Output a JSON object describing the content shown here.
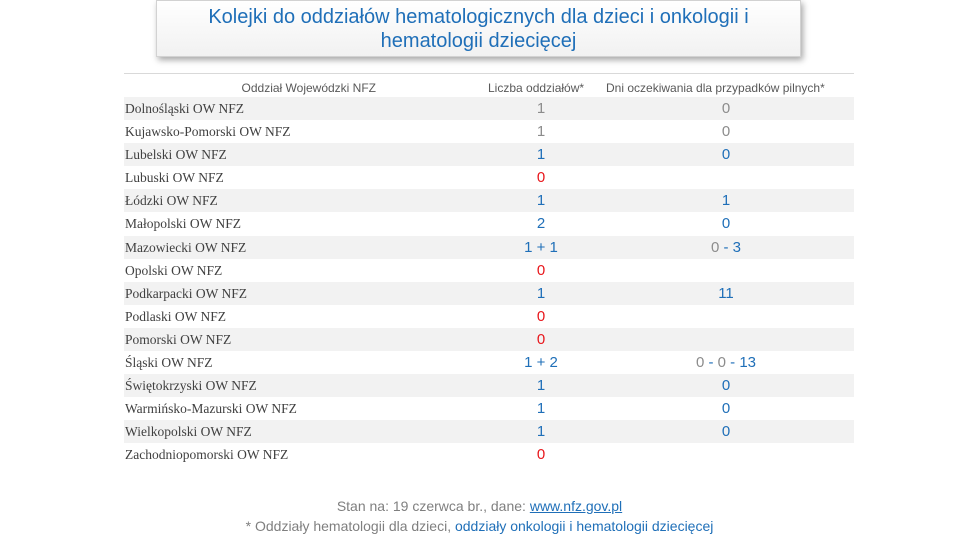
{
  "title": {
    "line1": "Kolejki do oddziałów hematologicznych dla dzieci i onkologii i",
    "line2": "hematologii dziecięcej"
  },
  "table": {
    "headers": {
      "region": "Oddział Wojewódzki NFZ",
      "count": "Liczba oddziałów*",
      "wait": "Dni oczekiwania dla przypadków pilnych*"
    },
    "rows": [
      {
        "name": "Dolnośląski OW NFZ",
        "count": "1",
        "wait": "0"
      },
      {
        "name": "Kujawsko-Pomorski OW NFZ",
        "count": "1",
        "wait": "0"
      },
      {
        "name": "Lubelski OW NFZ",
        "count": "1",
        "wait": "0"
      },
      {
        "name": "Lubuski OW NFZ",
        "count": "0",
        "wait": ""
      },
      {
        "name": "Łódzki OW NFZ",
        "count": "1",
        "wait": "1"
      },
      {
        "name": "Małopolski OW NFZ",
        "count": "2",
        "wait": "0"
      },
      {
        "name": "Mazowiecki OW NFZ",
        "count": "1 + 1",
        "wait": "0 - 3"
      },
      {
        "name": "Opolski OW NFZ",
        "count": "0",
        "wait": ""
      },
      {
        "name": "Podkarpacki OW NFZ",
        "count": "1",
        "wait": "11"
      },
      {
        "name": "Podlaski OW NFZ",
        "count": "0",
        "wait": ""
      },
      {
        "name": "Pomorski OW NFZ",
        "count": "0",
        "wait": ""
      },
      {
        "name": "Śląski OW NFZ",
        "count": "1 + 2",
        "wait": "0 - 0 - 13"
      },
      {
        "name": "Świętokrzyski OW NFZ",
        "count": "1",
        "wait": "0"
      },
      {
        "name": "Warmińsko-Mazurski OW NFZ",
        "count": "1",
        "wait": "0"
      },
      {
        "name": "Wielkopolski OW NFZ",
        "count": "1",
        "wait": "0"
      },
      {
        "name": "Zachodniopomorski OW NFZ",
        "count": "0",
        "wait": ""
      }
    ]
  },
  "colors": {
    "blue": "#1f6fb8",
    "red": "#e8161b",
    "grey": "#8c8c8c"
  },
  "footer": {
    "source_prefix": "Stan na: 19 czerwca br., dane: ",
    "source_link": "www.nfz.gov.pl",
    "note_prefix": "* Oddziały hematologii dla dzieci, ",
    "note_highlight": "oddziały onkologii i hematologii dziecięcej"
  }
}
